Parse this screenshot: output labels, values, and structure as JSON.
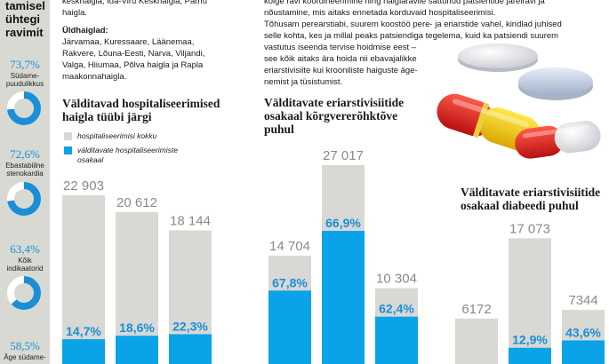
{
  "sidebar": {
    "heading": [
      "tamisel",
      "ühtegi",
      "ravimit"
    ],
    "stats": [
      {
        "pct": "73,7%",
        "label": [
          "Südame-",
          "puudulikkus"
        ],
        "fraction": 0.737
      },
      {
        "pct": "72,6%",
        "label": [
          "Ebastabiilne",
          "stenokardia"
        ],
        "fraction": 0.726
      },
      {
        "pct": "63,4%",
        "label": [
          "Kõik",
          "indikaatorid"
        ],
        "fraction": 0.634
      },
      {
        "pct": "58,5%",
        "label": [
          "Äge südame-"
        ],
        "fraction": 0.585
      }
    ]
  },
  "top_left_text": [
    "keskhaigla, Ida-Viru Keskhaigla, Pärnu",
    "haigla."
  ],
  "hospitals": {
    "title": "Üldhaiglad:",
    "lines": [
      "Järvamaa, Kuressaare, Läänemaa,",
      "Rakvere, Lõuna-Eesti, Narva, Viljandi,",
      "Valga, Hiiumaa, Põlva haigla ja Rapla",
      "maakonnahaigla."
    ]
  },
  "body_text_lines": [
    "kõige ravi koordineerimine ning haiglaravile sattunud patsientide järelravi ja",
    "nõustamine, mis aitaks ennetada korduvaid hospitaliseerimisi.",
    "Tõhusam perearstiabi, suurem koostöö pere- ja eriarstide vahel, kindlad juhised",
    "selle kohta, kes ja millal peaks patsiendiga tegelema, kuid ka patsiendi suurem",
    "vastutus iseenda tervise hoidmise eest –",
    "see kõik aitaks ära hoida nii ebavajalikke",
    "eriarstivisiite kui krooniliste haiguste äge-",
    "nemist ja tüsistumist."
  ],
  "legend": {
    "total": "hospitaliseerimisi kokku",
    "avoidable": [
      "välditavate hospitaliseerimiste",
      "osakaal"
    ]
  },
  "colors": {
    "grey_bar": "#d8d8d4",
    "blue_bar": "#0aa3e8",
    "pct_blue": "#1a8fd6",
    "number_grey": "#8a8a8a",
    "ring_bg": "#ffffff"
  },
  "chart_data": [
    {
      "type": "bar",
      "title": [
        "Välditavad hospitaliseerimised",
        "haigla tüübi järgi"
      ],
      "total_label": "hospitaliseerimisi kokku",
      "totals": [
        22903,
        20612,
        18144
      ],
      "total_labels": [
        "22 903",
        "20 612",
        "18 144"
      ],
      "avoidable_share": [
        14.7,
        18.6,
        22.3
      ],
      "avoidable_labels": [
        "14,7%",
        "18,6%",
        "22,3%"
      ]
    },
    {
      "type": "bar",
      "title": [
        "Välditavate eriarstivisiitide",
        "osakaal kõrgvererõhktõve",
        "puhul"
      ],
      "totals": [
        14704,
        27017,
        10304
      ],
      "total_labels": [
        "14 704",
        "27 017",
        "10 304"
      ],
      "avoidable_share": [
        67.8,
        66.9,
        62.4
      ],
      "avoidable_labels": [
        "67,8%",
        "66,9%",
        "62,4%"
      ]
    },
    {
      "type": "bar",
      "title": [
        "Välditavate eriarstivisiitide",
        "osakaal diabeedi puhul"
      ],
      "totals": [
        6172,
        17073,
        7344
      ],
      "total_labels": [
        "6172",
        "17 073",
        "7344"
      ],
      "avoidable_share": [
        null,
        12.9,
        43.6
      ],
      "avoidable_labels": [
        "",
        "12,9%",
        "43,6%"
      ]
    }
  ]
}
